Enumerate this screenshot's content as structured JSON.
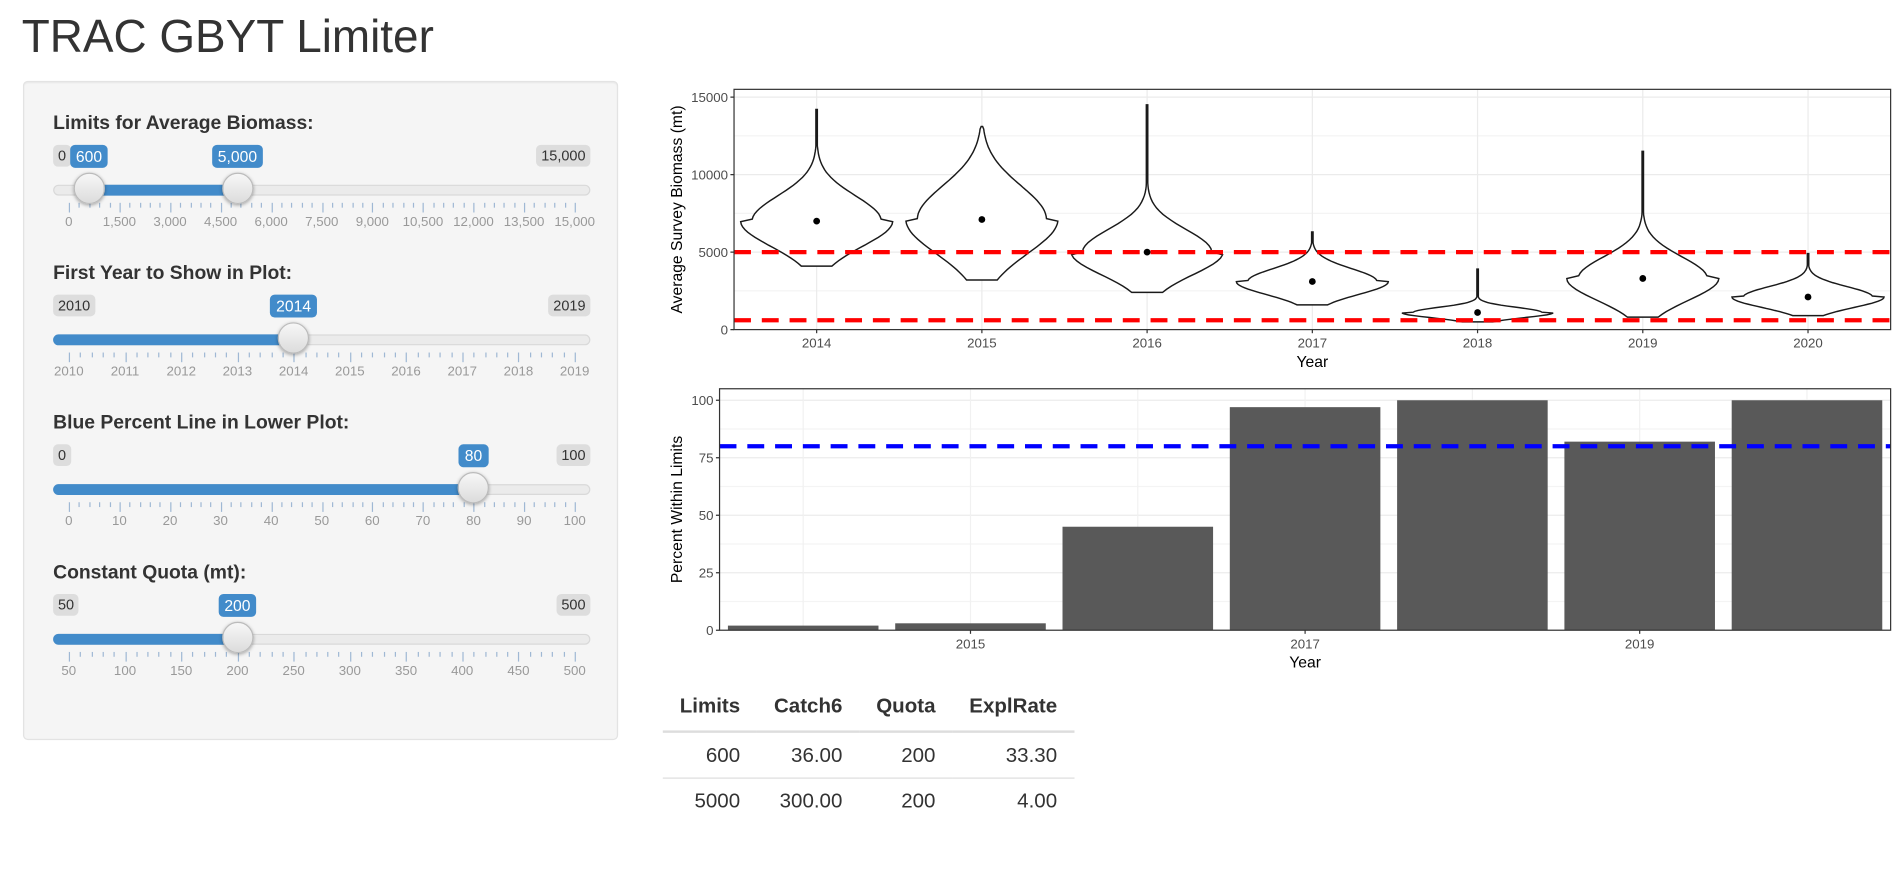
{
  "app": {
    "title": "TRAC GBYT Limiter"
  },
  "sliders": [
    {
      "label": "Limits for Average Biomass:",
      "min": 0,
      "max": 15000,
      "values": [
        600,
        5000
      ],
      "min_label": "0",
      "max_label": "15,000",
      "value_labels": [
        "600",
        "5,000"
      ],
      "tick_labels": [
        "0",
        "1,500",
        "3,000",
        "4,500",
        "6,000",
        "7,500",
        "9,000",
        "10,500",
        "12,000",
        "13,500",
        "15,000"
      ],
      "range": true
    },
    {
      "label": "First Year to Show in Plot:",
      "min": 2010,
      "max": 2019,
      "values": [
        2014
      ],
      "min_label": "2010",
      "max_label": "2019",
      "value_labels": [
        "2014"
      ],
      "tick_labels": [
        "2010",
        "2011",
        "2012",
        "2013",
        "2014",
        "2015",
        "2016",
        "2017",
        "2018",
        "2019"
      ],
      "range": false
    },
    {
      "label": "Blue Percent Line in Lower Plot:",
      "min": 0,
      "max": 100,
      "values": [
        80
      ],
      "min_label": "0",
      "max_label": "100",
      "value_labels": [
        "80"
      ],
      "tick_labels": [
        "0",
        "10",
        "20",
        "30",
        "40",
        "50",
        "60",
        "70",
        "80",
        "90",
        "100"
      ],
      "range": false
    },
    {
      "label": "Constant Quota (mt):",
      "min": 50,
      "max": 500,
      "values": [
        200
      ],
      "min_label": "50",
      "max_label": "500",
      "value_labels": [
        "200"
      ],
      "tick_labels": [
        "50",
        "100",
        "150",
        "200",
        "250",
        "300",
        "350",
        "400",
        "450",
        "500"
      ],
      "range": false
    }
  ],
  "chart_data": [
    {
      "type": "violin",
      "xlabel": "Year",
      "ylabel": "Average Survey Biomass (mt)",
      "categories": [
        "2014",
        "2015",
        "2016",
        "2017",
        "2018",
        "2019",
        "2020"
      ],
      "ylim": [
        0,
        15500
      ],
      "y_ticks": [
        0,
        5000,
        10000,
        15000
      ],
      "y_tick_labels": [
        "0",
        "5000",
        "10000",
        "15000"
      ],
      "violins": [
        {
          "year": "2014",
          "median": 7000,
          "min": 4100,
          "max": 14200
        },
        {
          "year": "2015",
          "median": 7100,
          "min": 3200,
          "max": 13100
        },
        {
          "year": "2016",
          "median": 5000,
          "min": 2400,
          "max": 14500
        },
        {
          "year": "2017",
          "median": 3100,
          "min": 1600,
          "max": 6300
        },
        {
          "year": "2018",
          "median": 1100,
          "min": 500,
          "max": 3900
        },
        {
          "year": "2019",
          "median": 3300,
          "min": 800,
          "max": 11500
        },
        {
          "year": "2020",
          "median": 2100,
          "min": 900,
          "max": 4900
        }
      ],
      "hlines": [
        5000,
        600
      ],
      "hline_color": "#ff0000",
      "grid": true
    },
    {
      "type": "bar",
      "xlabel": "Year",
      "ylabel": "Percent Within Limits",
      "categories": [
        "2014",
        "2015",
        "2016",
        "2017",
        "2018",
        "2019",
        "2020"
      ],
      "values": [
        2,
        3,
        45,
        97,
        100,
        82,
        100
      ],
      "x_tick_labels": [
        "2015",
        "2017",
        "2019"
      ],
      "y_ticks": [
        0,
        25,
        50,
        75,
        100
      ],
      "y_tick_labels": [
        "0",
        "25",
        "50",
        "75",
        "100"
      ],
      "ylim": [
        0,
        105
      ],
      "hline": 80,
      "hline_color": "#0000ff",
      "bar_color": "#595959",
      "grid": true
    }
  ],
  "table": {
    "columns": [
      "Limits",
      "Catch6",
      "Quota",
      "ExplRate"
    ],
    "rows": [
      [
        "600",
        "36.00",
        "200",
        "33.30"
      ],
      [
        "5000",
        "300.00",
        "200",
        "4.00"
      ]
    ]
  }
}
